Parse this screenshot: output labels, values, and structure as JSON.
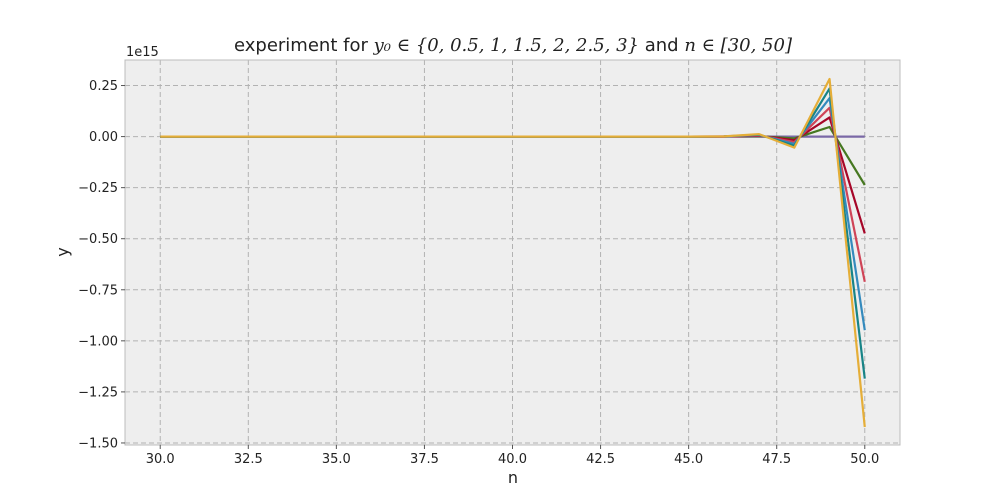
{
  "chart_data": {
    "type": "line",
    "title": {
      "prefix": "experiment for ",
      "math1": "y₀ ∈ {0, 0.5, 1, 1.5, 2, 2.5, 3}",
      "middle": " and ",
      "math2": "n ∈ [30, 50]"
    },
    "xlabel": "n",
    "ylabel": "y",
    "y_offset_label": "1e15",
    "y_scale": 1000000000000000.0,
    "xlim": [
      29,
      51
    ],
    "ylim": [
      -1.51,
      0.375
    ],
    "xticks": [
      30.0,
      32.5,
      35.0,
      37.5,
      40.0,
      42.5,
      45.0,
      47.5,
      50.0
    ],
    "xtick_labels": [
      "30.0",
      "32.5",
      "35.0",
      "37.5",
      "40.0",
      "42.5",
      "45.0",
      "47.5",
      "50.0"
    ],
    "yticks": [
      0.25,
      0.0,
      -0.25,
      -0.5,
      -0.75,
      -1.0,
      -1.25,
      -1.5
    ],
    "ytick_labels": [
      "0.25",
      "0.00",
      "−0.25",
      "−0.50",
      "−0.75",
      "−1.00",
      "−1.25",
      "−1.50"
    ],
    "grid": true,
    "background": "#eeeeee",
    "x": [
      30,
      31,
      32,
      33,
      34,
      35,
      36,
      37,
      38,
      39,
      40,
      41,
      42,
      43,
      44,
      45,
      46,
      47,
      48,
      49,
      50
    ],
    "series": [
      {
        "color": "#7a68a6",
        "values": [
          0,
          0,
          0,
          0,
          0,
          0,
          0,
          0,
          0,
          0,
          0,
          0,
          0,
          0,
          0,
          0,
          0,
          0,
          0,
          0,
          0
        ]
      },
      {
        "color": "#467821",
        "values": [
          0,
          0,
          0,
          0,
          0,
          0,
          0,
          0,
          0,
          0,
          0,
          0,
          0,
          0,
          0,
          0,
          0.0002,
          0.002,
          -0.009,
          0.047,
          -0.237
        ]
      },
      {
        "color": "#a60628",
        "values": [
          0,
          0,
          0,
          0,
          0,
          0,
          0,
          0,
          0,
          0,
          0,
          0,
          0,
          0,
          0,
          0,
          0.0003,
          0.004,
          -0.018,
          0.094,
          -0.474
        ]
      },
      {
        "color": "#cf4457",
        "values": [
          0,
          0,
          0,
          0,
          0,
          0,
          0,
          0,
          0,
          0,
          0,
          0,
          0,
          0,
          0,
          0,
          0.0005,
          0.006,
          -0.027,
          0.141,
          -0.711
        ]
      },
      {
        "color": "#348abd",
        "values": [
          0,
          0,
          0,
          0,
          0,
          0,
          0,
          0,
          0,
          0,
          0,
          0,
          0,
          0,
          0,
          0,
          0.0007,
          0.008,
          -0.036,
          0.188,
          -0.948
        ]
      },
      {
        "color": "#188487",
        "values": [
          0,
          0,
          0,
          0,
          0,
          0,
          0,
          0,
          0,
          0,
          0,
          0,
          0,
          0,
          0,
          0,
          0.0008,
          0.01,
          -0.045,
          0.235,
          -1.185
        ]
      },
      {
        "color": "#e5ae38",
        "values": [
          0,
          0,
          0,
          0,
          0,
          0,
          0,
          0,
          0,
          0,
          0,
          0,
          0,
          0,
          0,
          0,
          0.001,
          0.012,
          -0.054,
          0.282,
          -1.422
        ]
      }
    ]
  }
}
